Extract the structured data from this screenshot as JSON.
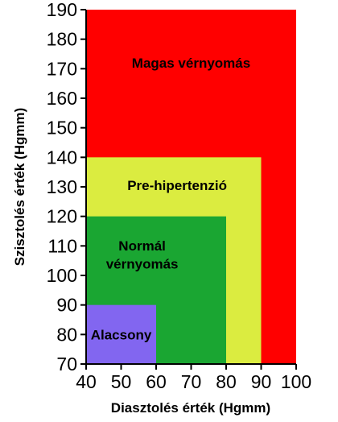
{
  "chart_data": {
    "type": "area",
    "xlabel": "Diasztolés érték (Hgmm)",
    "ylabel": "Szisztolés érték (Hgmm)",
    "xlim": [
      40,
      100
    ],
    "ylim": [
      70,
      190
    ],
    "x_ticks": [
      40,
      50,
      60,
      70,
      80,
      90,
      100
    ],
    "y_ticks": [
      70,
      80,
      90,
      100,
      110,
      120,
      130,
      140,
      150,
      160,
      170,
      180,
      190
    ],
    "grid": false,
    "regions": [
      {
        "name": "Magas vérnyomás",
        "lines": [
          "Magas vérnyomás"
        ],
        "x": [
          40,
          100
        ],
        "y": [
          70,
          190
        ],
        "color": "#ff0000",
        "label_at": [
          70,
          172
        ]
      },
      {
        "name": "Pre-hipertenzió",
        "lines": [
          "Pre-hipertenzió"
        ],
        "x": [
          40,
          90
        ],
        "y": [
          70,
          140
        ],
        "color": "#dbec40",
        "label_at": [
          66,
          130.5
        ]
      },
      {
        "name": "Normál vérnyomás",
        "lines": [
          "Normál",
          "vérnyomás"
        ],
        "x": [
          40,
          80
        ],
        "y": [
          70,
          120
        ],
        "color": "#1aa632",
        "label_at": [
          56,
          107
        ]
      },
      {
        "name": "Alacsony",
        "lines": [
          "Alacsony"
        ],
        "x": [
          40,
          60
        ],
        "y": [
          70,
          90
        ],
        "color": "#8266f0",
        "label_at": [
          50,
          80
        ]
      }
    ]
  }
}
